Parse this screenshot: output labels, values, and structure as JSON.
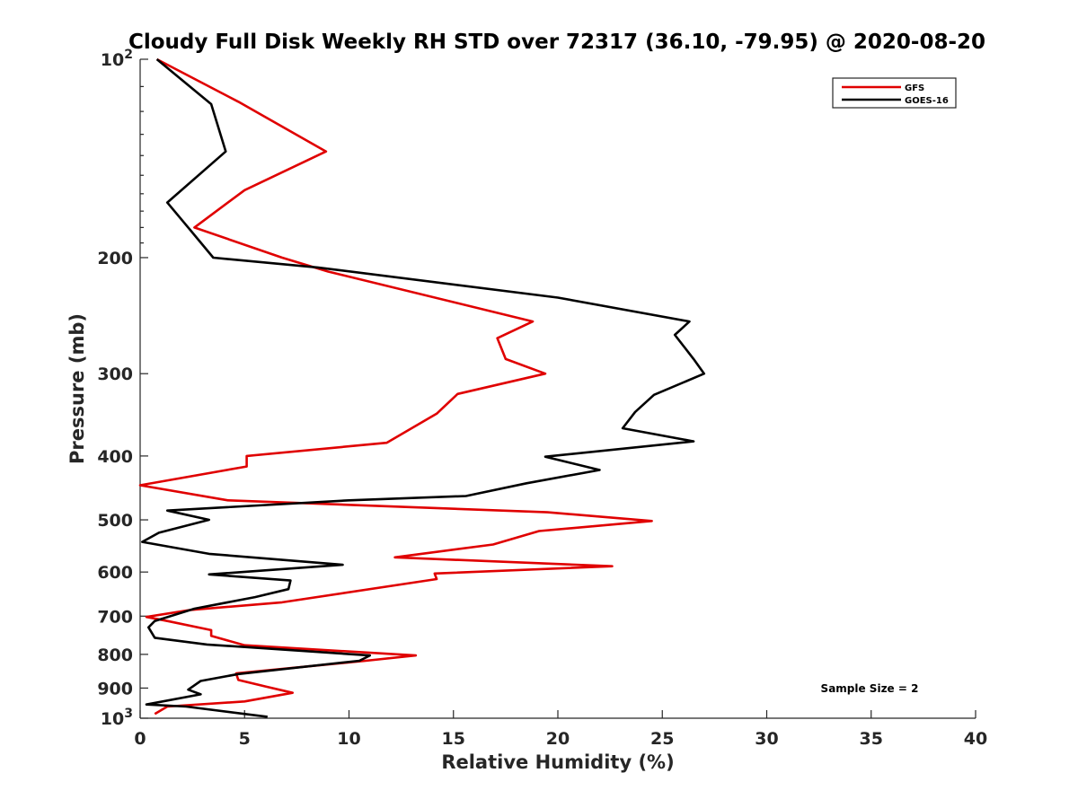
{
  "chart_data": {
    "type": "line",
    "title": "Cloudy Full Disk Weekly RH STD over 72317 (36.10, -79.95) @ 2020-08-20",
    "xlabel": "Relative Humidity (%)",
    "ylabel": "Pressure (mb)",
    "xlim": [
      0,
      40
    ],
    "ylim": [
      100,
      1000
    ],
    "yscale": "log",
    "y_reversed": true,
    "grid": false,
    "legend_position": "top-right",
    "x_ticks": [
      "0",
      "5",
      "10",
      "15",
      "20",
      "25",
      "30",
      "35",
      "40"
    ],
    "y_ticks": [
      {
        "value": 200,
        "label": "200"
      },
      {
        "value": 300,
        "label": "300"
      },
      {
        "value": 400,
        "label": "400"
      },
      {
        "value": 500,
        "label": "500"
      },
      {
        "value": 600,
        "label": "600"
      },
      {
        "value": 700,
        "label": "700"
      },
      {
        "value": 800,
        "label": "800"
      },
      {
        "value": 900,
        "label": "900"
      }
    ],
    "y_tick_top": {
      "base": "10",
      "exp": "2",
      "value": 100
    },
    "y_tick_bottom": {
      "base": "10",
      "exp": "3",
      "value": 1000
    },
    "annotation": "Sample Size = 2",
    "series": [
      {
        "name": "GFS",
        "color": "#e00000",
        "points": [
          {
            "x": 0.8,
            "y": 100
          },
          {
            "x": 4.7,
            "y": 116
          },
          {
            "x": 8.9,
            "y": 138
          },
          {
            "x": 5.0,
            "y": 158
          },
          {
            "x": 2.6,
            "y": 180
          },
          {
            "x": 6.8,
            "y": 200
          },
          {
            "x": 9.0,
            "y": 210
          },
          {
            "x": 18.8,
            "y": 250
          },
          {
            "x": 17.1,
            "y": 265
          },
          {
            "x": 17.5,
            "y": 285
          },
          {
            "x": 19.4,
            "y": 300
          },
          {
            "x": 15.2,
            "y": 322
          },
          {
            "x": 14.2,
            "y": 345
          },
          {
            "x": 11.8,
            "y": 382
          },
          {
            "x": 5.1,
            "y": 400
          },
          {
            "x": 5.1,
            "y": 415
          },
          {
            "x": 0.0,
            "y": 443
          },
          {
            "x": 4.2,
            "y": 467
          },
          {
            "x": 19.5,
            "y": 487
          },
          {
            "x": 24.5,
            "y": 502
          },
          {
            "x": 19.1,
            "y": 520
          },
          {
            "x": 16.9,
            "y": 545
          },
          {
            "x": 12.2,
            "y": 570
          },
          {
            "x": 22.6,
            "y": 588
          },
          {
            "x": 14.1,
            "y": 603
          },
          {
            "x": 14.2,
            "y": 615
          },
          {
            "x": 6.8,
            "y": 667
          },
          {
            "x": 2.4,
            "y": 685
          },
          {
            "x": 0.3,
            "y": 702
          },
          {
            "x": 1.3,
            "y": 712
          },
          {
            "x": 3.4,
            "y": 735
          },
          {
            "x": 3.4,
            "y": 750
          },
          {
            "x": 5.0,
            "y": 775
          },
          {
            "x": 13.2,
            "y": 803
          },
          {
            "x": 10.8,
            "y": 818
          },
          {
            "x": 4.6,
            "y": 855
          },
          {
            "x": 4.7,
            "y": 875
          },
          {
            "x": 6.0,
            "y": 895
          },
          {
            "x": 7.3,
            "y": 915
          },
          {
            "x": 5.0,
            "y": 943
          },
          {
            "x": 1.3,
            "y": 960
          },
          {
            "x": 0.7,
            "y": 985
          }
        ]
      },
      {
        "name": "GOES-16",
        "color": "#000000",
        "points": [
          {
            "x": 0.8,
            "y": 100
          },
          {
            "x": 3.4,
            "y": 117
          },
          {
            "x": 4.1,
            "y": 138
          },
          {
            "x": 1.3,
            "y": 165
          },
          {
            "x": 2.3,
            "y": 180
          },
          {
            "x": 3.5,
            "y": 200
          },
          {
            "x": 8.5,
            "y": 207
          },
          {
            "x": 20.0,
            "y": 230
          },
          {
            "x": 26.3,
            "y": 250
          },
          {
            "x": 25.6,
            "y": 262
          },
          {
            "x": 26.5,
            "y": 285
          },
          {
            "x": 27.0,
            "y": 300
          },
          {
            "x": 24.6,
            "y": 323
          },
          {
            "x": 23.7,
            "y": 343
          },
          {
            "x": 23.1,
            "y": 363
          },
          {
            "x": 26.5,
            "y": 380
          },
          {
            "x": 19.4,
            "y": 401
          },
          {
            "x": 22.0,
            "y": 420
          },
          {
            "x": 18.5,
            "y": 440
          },
          {
            "x": 15.6,
            "y": 460
          },
          {
            "x": 10.0,
            "y": 467
          },
          {
            "x": 1.3,
            "y": 484
          },
          {
            "x": 3.3,
            "y": 500
          },
          {
            "x": 0.9,
            "y": 523
          },
          {
            "x": 0.1,
            "y": 540
          },
          {
            "x": 3.3,
            "y": 563
          },
          {
            "x": 9.7,
            "y": 585
          },
          {
            "x": 3.3,
            "y": 605
          },
          {
            "x": 7.2,
            "y": 618
          },
          {
            "x": 7.1,
            "y": 637
          },
          {
            "x": 5.5,
            "y": 655
          },
          {
            "x": 2.6,
            "y": 682
          },
          {
            "x": 0.7,
            "y": 712
          },
          {
            "x": 0.4,
            "y": 728
          },
          {
            "x": 0.7,
            "y": 755
          },
          {
            "x": 3.2,
            "y": 773
          },
          {
            "x": 11.0,
            "y": 803
          },
          {
            "x": 10.5,
            "y": 818
          },
          {
            "x": 4.7,
            "y": 857
          },
          {
            "x": 2.9,
            "y": 878
          },
          {
            "x": 2.3,
            "y": 905
          },
          {
            "x": 2.9,
            "y": 920
          },
          {
            "x": 0.3,
            "y": 953
          },
          {
            "x": 2.2,
            "y": 960
          },
          {
            "x": 6.1,
            "y": 995
          }
        ]
      }
    ]
  }
}
